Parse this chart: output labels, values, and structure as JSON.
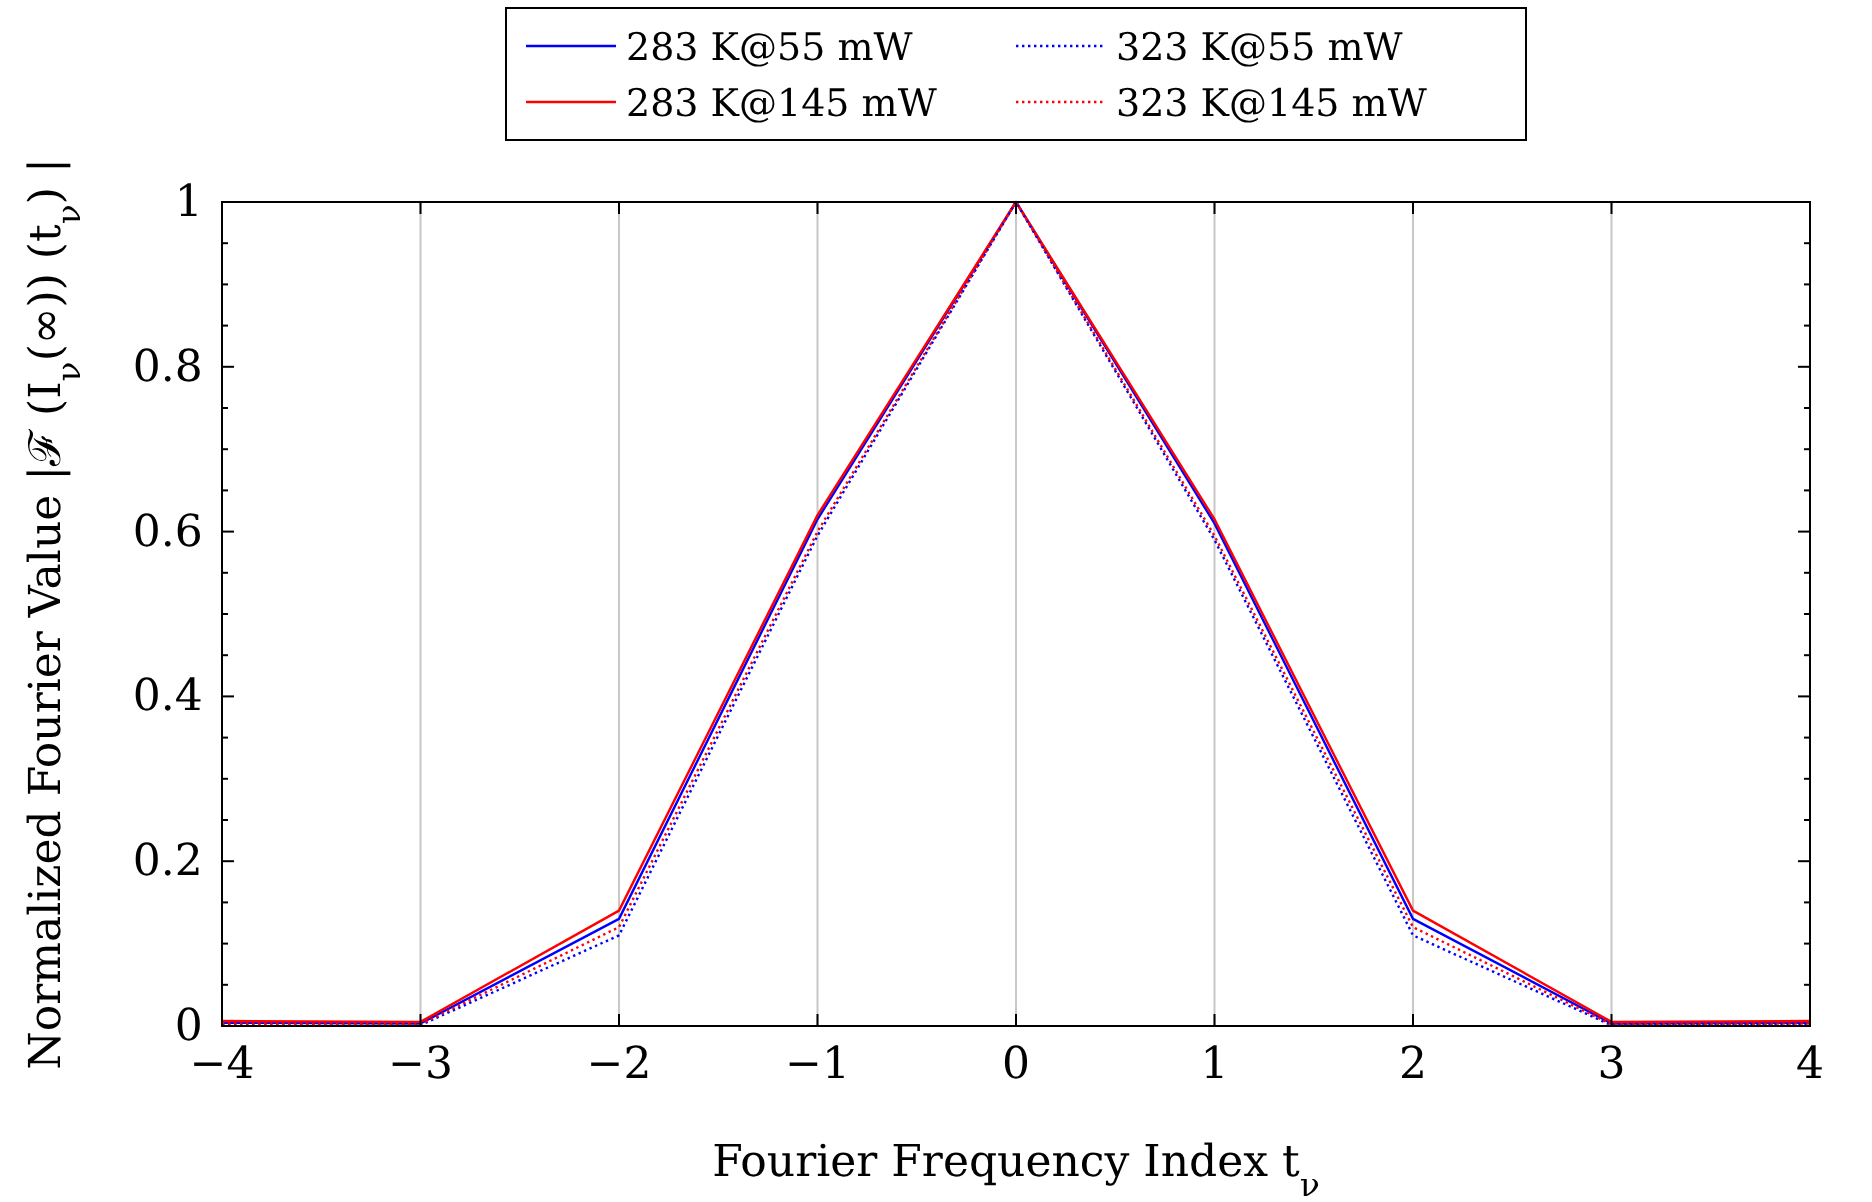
{
  "chart_data": {
    "type": "line",
    "xlabel": "Fourier Frequency Index t$_{ν}$",
    "ylabel": "Normalized Fourier Value |ℱ (I$_{ν}$(∞)) (t$_{ν}$) |",
    "x": [
      -4,
      -3,
      -2,
      -1,
      0,
      1,
      2,
      3,
      4
    ],
    "series": [
      {
        "name": "283 K@55 mW",
        "color": "#0000ff",
        "line_style": "solid",
        "values": [
          0.004,
          0.003,
          0.13,
          0.615,
          1,
          0.61,
          0.13,
          0.003,
          0.004
        ]
      },
      {
        "name": "283 K@145 mW",
        "color": "#ff0000",
        "line_style": "solid",
        "values": [
          0.006,
          0.005,
          0.14,
          0.62,
          1,
          0.615,
          0.14,
          0.005,
          0.006
        ]
      },
      {
        "name": "323 K@55 mW",
        "color": "#0000ff",
        "line_style": "dotted",
        "values": [
          0.002,
          0.001,
          0.11,
          0.595,
          1,
          0.59,
          0.11,
          0.001,
          0.002
        ]
      },
      {
        "name": "323 K@145 mW",
        "color": "#ff0000",
        "line_style": "dotted",
        "values": [
          0.003,
          0.002,
          0.12,
          0.6,
          1,
          0.595,
          0.12,
          0.002,
          0.003
        ]
      }
    ],
    "xlim": [
      -4,
      4
    ],
    "ylim": [
      0,
      1
    ],
    "xticks": [
      {
        "value": -4,
        "label": "−4"
      },
      {
        "value": -3,
        "label": "−3"
      },
      {
        "value": -2,
        "label": "−2"
      },
      {
        "value": -1,
        "label": "−1"
      },
      0,
      1,
      2,
      3,
      4
    ],
    "yticks": [
      0,
      {
        "value": 0.05,
        "label": null
      },
      {
        "value": 0.1,
        "label": null
      },
      {
        "value": 0.15,
        "label": null
      },
      0.2,
      {
        "value": 0.25,
        "label": null
      },
      {
        "value": 0.3,
        "label": null
      },
      {
        "value": 0.35,
        "label": null
      },
      0.4,
      {
        "value": 0.45,
        "label": null
      },
      {
        "value": 0.5,
        "label": null
      },
      {
        "value": 0.55,
        "label": null
      },
      0.6,
      {
        "value": 0.65,
        "label": null
      },
      {
        "value": 0.7,
        "label": null
      },
      {
        "value": 0.75,
        "label": null
      },
      0.8,
      {
        "value": 0.85,
        "label": null
      },
      {
        "value": 0.9,
        "label": null
      },
      {
        "value": 0.95,
        "label": null
      },
      1
    ],
    "grid": "x",
    "legend": "top",
    "marker": "none"
  }
}
